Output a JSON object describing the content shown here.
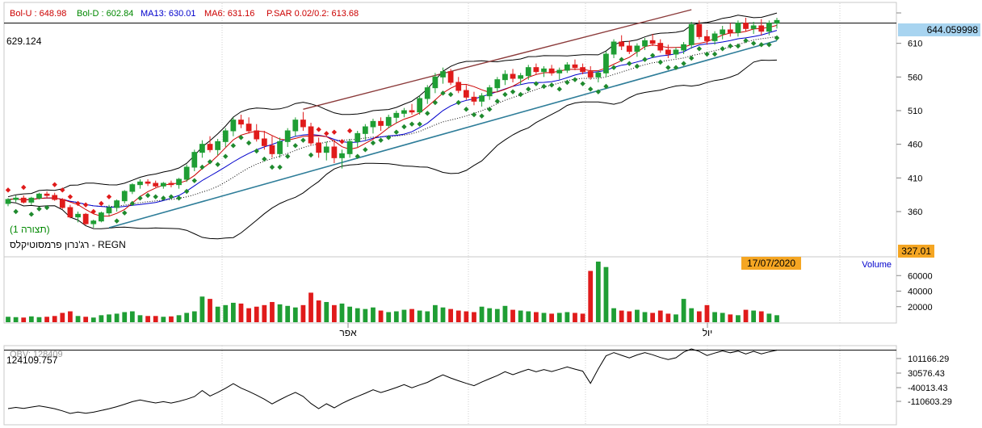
{
  "chart_data": {
    "type": "candlestick",
    "title": "רג'נרון פרמסוטיקלס - REGN",
    "annotation": "(תצורה 1)",
    "legend": [
      {
        "label": "Bol-U : 648.98",
        "color": "#cc0000"
      },
      {
        "label": "Bol-D : 602.84",
        "color": "#008800"
      },
      {
        "label": "MA13: 630.01",
        "color": "#0000cc"
      },
      {
        "label": "MA6: 631.16",
        "color": "#cc0000"
      },
      {
        "label": "P.SAR 0.02/0.2: 613.68",
        "color": "#cc0000"
      }
    ],
    "price_axis": {
      "ticks": [
        "610",
        "560",
        "510",
        "460",
        "410",
        "360"
      ],
      "ylim": [
        300,
        660
      ]
    },
    "crosshair": {
      "left_label": "629.124",
      "right_label": "644.059998",
      "value": 640
    },
    "lowest_label": "327.01",
    "date_label": "17/07/2020",
    "x_month_labels": [
      "אפר",
      "יול"
    ],
    "ohlc_approx": [
      [
        372,
        380,
        368,
        378
      ],
      [
        378,
        384,
        374,
        380
      ],
      [
        380,
        384,
        372,
        374
      ],
      [
        374,
        382,
        370,
        380
      ],
      [
        380,
        388,
        378,
        386
      ],
      [
        386,
        390,
        380,
        384
      ],
      [
        384,
        388,
        376,
        378
      ],
      [
        378,
        380,
        364,
        366
      ],
      [
        366,
        370,
        350,
        352
      ],
      [
        352,
        360,
        344,
        356
      ],
      [
        356,
        358,
        340,
        342
      ],
      [
        342,
        348,
        336,
        346
      ],
      [
        346,
        360,
        344,
        358
      ],
      [
        358,
        370,
        354,
        366
      ],
      [
        366,
        378,
        360,
        376
      ],
      [
        376,
        392,
        372,
        390
      ],
      [
        390,
        402,
        386,
        400
      ],
      [
        400,
        408,
        394,
        404
      ],
      [
        404,
        408,
        398,
        402
      ],
      [
        402,
        406,
        396,
        398
      ],
      [
        398,
        404,
        394,
        402
      ],
      [
        402,
        406,
        396,
        400
      ],
      [
        400,
        410,
        394,
        408
      ],
      [
        408,
        430,
        404,
        426
      ],
      [
        426,
        452,
        420,
        448
      ],
      [
        448,
        466,
        440,
        460
      ],
      [
        460,
        472,
        448,
        452
      ],
      [
        452,
        468,
        444,
        464
      ],
      [
        464,
        484,
        456,
        480
      ],
      [
        480,
        500,
        472,
        496
      ],
      [
        496,
        504,
        484,
        490
      ],
      [
        490,
        500,
        476,
        480
      ],
      [
        480,
        490,
        464,
        468
      ],
      [
        468,
        480,
        452,
        458
      ],
      [
        458,
        472,
        440,
        446
      ],
      [
        446,
        470,
        440,
        464
      ],
      [
        464,
        484,
        456,
        480
      ],
      [
        480,
        500,
        472,
        496
      ],
      [
        496,
        508,
        480,
        486
      ],
      [
        486,
        492,
        458,
        462
      ],
      [
        462,
        470,
        440,
        448
      ],
      [
        448,
        464,
        436,
        456
      ],
      [
        456,
        466,
        432,
        440
      ],
      [
        440,
        452,
        424,
        446
      ],
      [
        446,
        468,
        440,
        464
      ],
      [
        464,
        480,
        456,
        476
      ],
      [
        476,
        490,
        466,
        486
      ],
      [
        486,
        498,
        476,
        494
      ],
      [
        494,
        500,
        480,
        488
      ],
      [
        488,
        504,
        484,
        500
      ],
      [
        500,
        510,
        492,
        506
      ],
      [
        506,
        514,
        500,
        510
      ],
      [
        510,
        520,
        504,
        508
      ],
      [
        508,
        532,
        504,
        528
      ],
      [
        528,
        548,
        520,
        544
      ],
      [
        544,
        566,
        536,
        560
      ],
      [
        560,
        574,
        550,
        568
      ],
      [
        568,
        572,
        548,
        552
      ],
      [
        552,
        560,
        536,
        540
      ],
      [
        540,
        548,
        526,
        530
      ],
      [
        530,
        538,
        518,
        524
      ],
      [
        524,
        536,
        516,
        532
      ],
      [
        532,
        548,
        526,
        544
      ],
      [
        544,
        560,
        538,
        556
      ],
      [
        556,
        570,
        548,
        564
      ],
      [
        564,
        572,
        552,
        558
      ],
      [
        558,
        566,
        548,
        562
      ],
      [
        562,
        578,
        556,
        574
      ],
      [
        574,
        580,
        564,
        568
      ],
      [
        568,
        576,
        560,
        572
      ],
      [
        572,
        578,
        562,
        566
      ],
      [
        566,
        574,
        556,
        570
      ],
      [
        570,
        582,
        566,
        578
      ],
      [
        578,
        586,
        570,
        574
      ],
      [
        574,
        580,
        564,
        568
      ],
      [
        568,
        576,
        556,
        560
      ],
      [
        560,
        570,
        552,
        566
      ],
      [
        566,
        598,
        560,
        594
      ],
      [
        594,
        616,
        588,
        612
      ],
      [
        612,
        622,
        600,
        606
      ],
      [
        606,
        614,
        594,
        598
      ],
      [
        598,
        610,
        590,
        606
      ],
      [
        606,
        618,
        600,
        614
      ],
      [
        614,
        624,
        606,
        610
      ],
      [
        610,
        616,
        596,
        600
      ],
      [
        600,
        608,
        588,
        594
      ],
      [
        594,
        604,
        588,
        600
      ],
      [
        600,
        612,
        594,
        608
      ],
      [
        608,
        642,
        602,
        638
      ],
      [
        638,
        644,
        616,
        620
      ],
      [
        620,
        630,
        608,
        614
      ],
      [
        614,
        628,
        608,
        624
      ],
      [
        624,
        636,
        616,
        630
      ],
      [
        630,
        640,
        620,
        626
      ],
      [
        626,
        644,
        620,
        640
      ],
      [
        640,
        648,
        628,
        632
      ],
      [
        632,
        642,
        624,
        636
      ],
      [
        636,
        646,
        622,
        628
      ],
      [
        628,
        644,
        622,
        640
      ],
      [
        640,
        648,
        632,
        644
      ]
    ],
    "volume_axis": {
      "ticks": [
        "60000",
        "40000",
        "20000"
      ],
      "ylim": [
        0,
        80000
      ],
      "label": "Volume"
    },
    "volume_approx": [
      7000,
      6500,
      6000,
      7500,
      6500,
      7000,
      8000,
      12000,
      14000,
      8000,
      7000,
      6000,
      9000,
      10000,
      11000,
      13000,
      14000,
      9000,
      8000,
      8000,
      7000,
      7500,
      9000,
      12000,
      14000,
      33000,
      30000,
      20000,
      22000,
      25000,
      24000,
      18000,
      20000,
      22000,
      26000,
      23000,
      21000,
      19000,
      22000,
      38000,
      28000,
      26000,
      22000,
      24000,
      20000,
      18000,
      17000,
      19000,
      15000,
      13000,
      14000,
      16000,
      17000,
      15000,
      14000,
      22000,
      19000,
      17000,
      15000,
      14000,
      13000,
      20000,
      18000,
      17000,
      21000,
      16000,
      15000,
      14000,
      13000,
      12000,
      11000,
      12000,
      13000,
      12000,
      11000,
      66000,
      78000,
      71000,
      18000,
      15000,
      14000,
      16000,
      13000,
      12000,
      15000,
      11000,
      10000,
      30000,
      18000,
      14000,
      22000,
      13000,
      12000,
      10000,
      9000,
      16000,
      15000,
      14000,
      11000,
      9000
    ],
    "obv_label": "OBV: 128409",
    "obv_axis": {
      "ticks": [
        "101166.29",
        "30576.43",
        "-40013.43",
        "-110603.29"
      ]
    },
    "obv_crosshair_label": "124109.757"
  }
}
